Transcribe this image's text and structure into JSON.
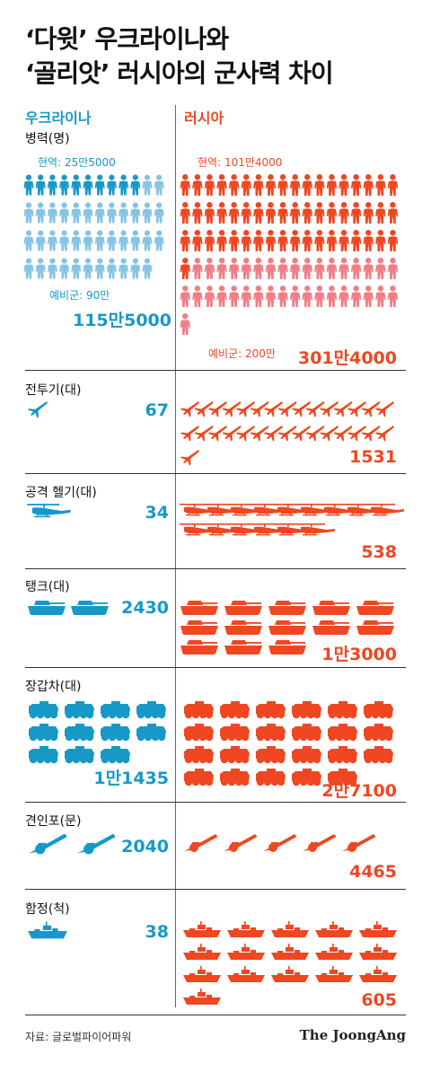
{
  "title_line1": "‘다윗’ 우크라이나와",
  "title_line2": "‘골리앗’ 러시아의 군사력 차이",
  "countries": {
    "ukraine": "우크라이나",
    "russia": "러시아"
  },
  "colors": {
    "ukraine": "#1799c8",
    "ukraine_light": "#86c3e4",
    "russia": "#ee4722",
    "russia_light": "#f07e86"
  },
  "chart_data": {
    "type": "table",
    "categories": [
      {
        "label": "병력(명)",
        "ukraine": "115만5000",
        "russia": "301만4000",
        "ukraine_active_label": "현역: 25만5000",
        "ukraine_reserve_label": "예비군: 90만",
        "russia_active_label": "현역: 101만4000",
        "russia_reserve_label": "예비군: 200만",
        "ukraine_value": 1155000,
        "russia_value": 3014000,
        "ukraine_active": 255000,
        "ukraine_reserve": 900000,
        "russia_active": 1014000,
        "russia_reserve": 2000000
      },
      {
        "label": "전투기(대)",
        "ukraine": "67",
        "russia": "1531",
        "ukraine_value": 67,
        "russia_value": 1531
      },
      {
        "label": "공격 헬기(대)",
        "ukraine": "34",
        "russia": "538",
        "ukraine_value": 34,
        "russia_value": 538
      },
      {
        "label": "탱크(대)",
        "ukraine": "2430",
        "russia": "1만3000",
        "ukraine_value": 2430,
        "russia_value": 13000
      },
      {
        "label": "장갑차(대)",
        "ukraine": "1만1435",
        "russia": "2만7100",
        "ukraine_value": 11435,
        "russia_value": 27100
      },
      {
        "label": "견인포(문)",
        "ukraine": "2040",
        "russia": "4465",
        "ukraine_value": 2040,
        "russia_value": 4465
      },
      {
        "label": "함정(척)",
        "ukraine": "38",
        "russia": "605",
        "ukraine_value": 38,
        "russia_value": 605
      }
    ]
  },
  "icons": [
    "soldier-icon",
    "fighter-jet-icon",
    "helicopter-icon",
    "tank-icon",
    "armored-vehicle-icon",
    "artillery-icon",
    "warship-icon"
  ],
  "source": "자료: 글로벌파이어파워",
  "logo": "The JoongAng"
}
